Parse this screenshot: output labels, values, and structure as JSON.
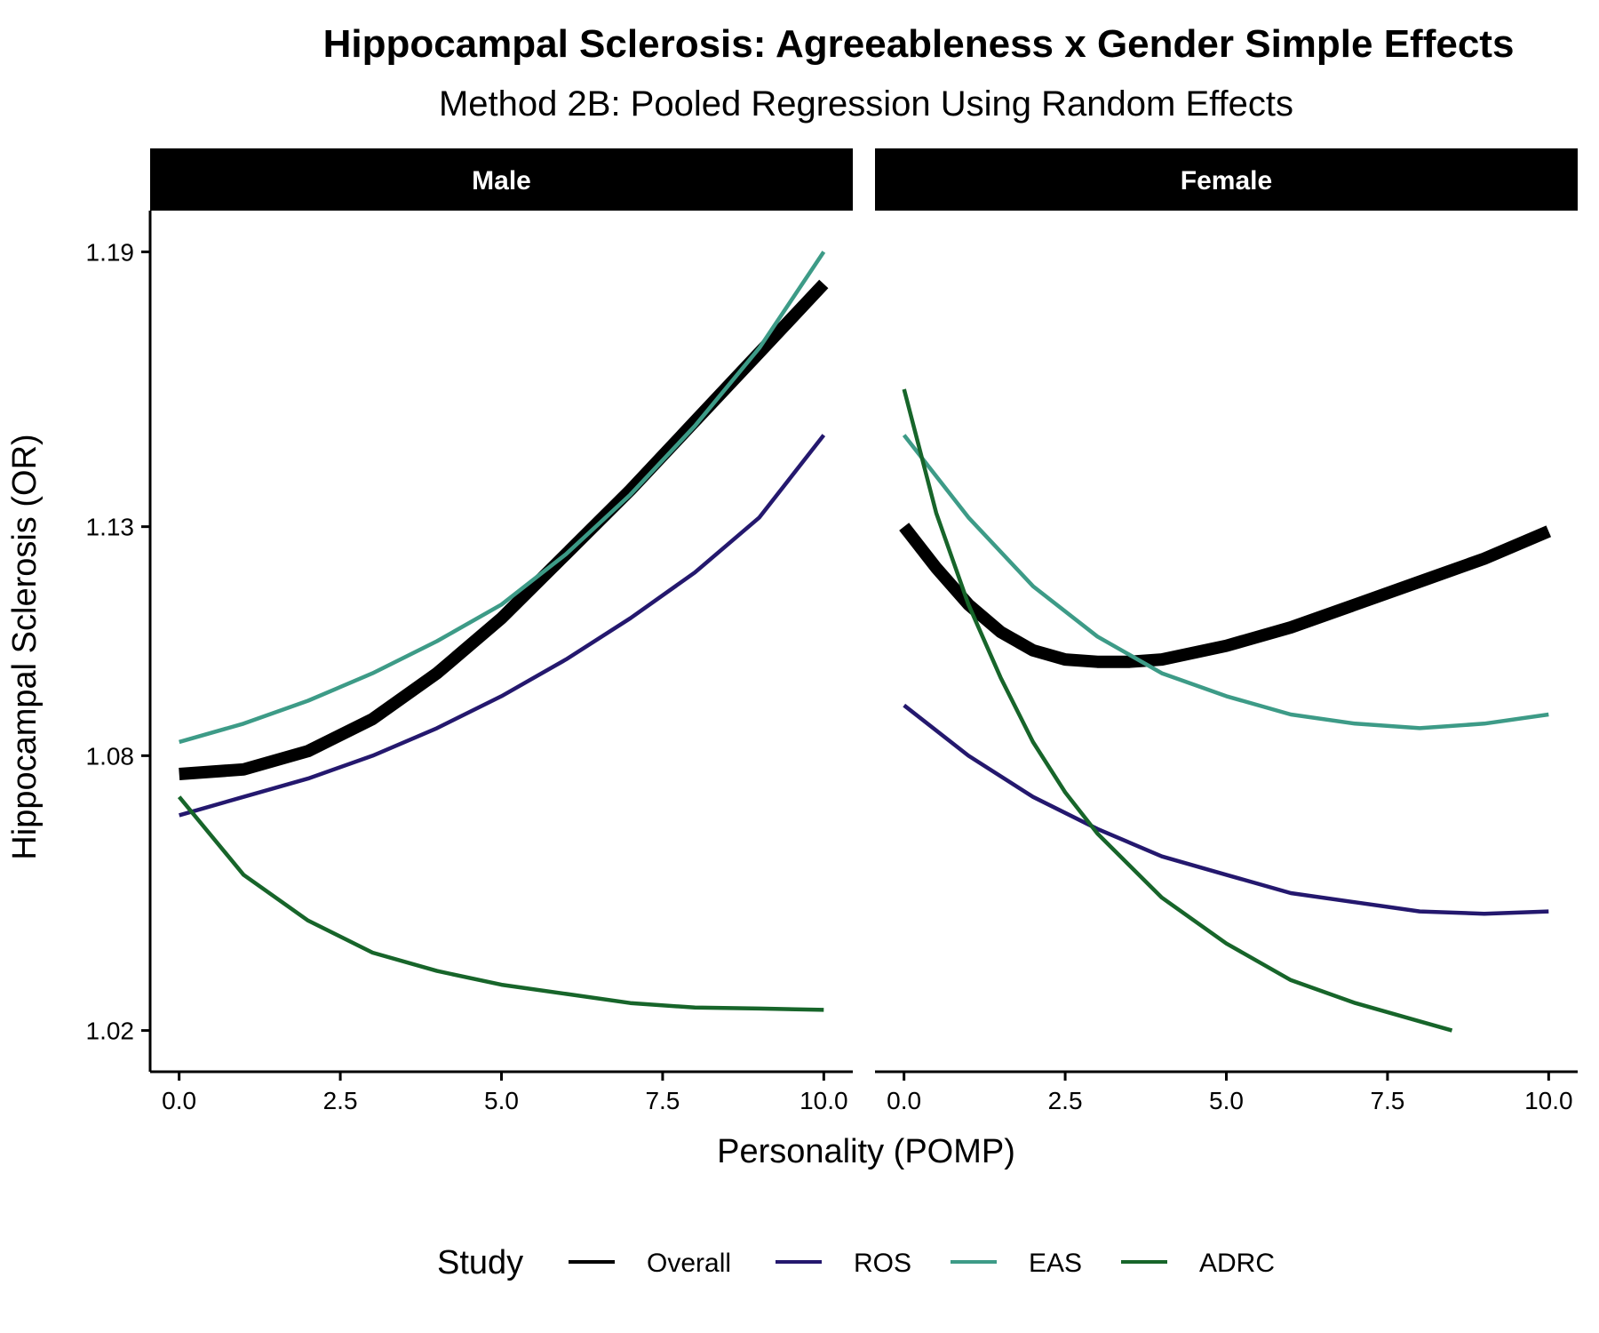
{
  "chart_data": {
    "type": "line",
    "title": "Hippocampal Sclerosis: Agreeableness x Gender Simple Effects",
    "subtitle": "Method 2B: Pooled Regression Using Random Effects",
    "xlabel": "Personality (POMP)",
    "ylabel": "Hippocampal Sclerosis (OR)",
    "xlim": [
      -0.45,
      10.45
    ],
    "ylim": [
      1.011,
      1.199
    ],
    "xticks": [
      0.0,
      2.5,
      5.0,
      7.5,
      10.0
    ],
    "xtick_labels": [
      "0.0",
      "2.5",
      "5.0",
      "7.5",
      "10.0"
    ],
    "yticks": [
      1.02,
      1.08,
      1.13,
      1.19
    ],
    "ytick_labels": [
      "1.02",
      "1.08",
      "1.13",
      "1.19"
    ],
    "grid": false,
    "legend": {
      "title": "Study",
      "position": "bottom"
    },
    "panels": [
      {
        "label": "Male",
        "series": [
          {
            "name": "Overall",
            "color": "#000000",
            "width": "thick",
            "x": [
              0,
              1,
              2,
              3,
              4,
              5,
              6,
              7,
              8,
              9,
              10
            ],
            "y": [
              1.076,
              1.077,
              1.081,
              1.088,
              1.098,
              1.11,
              1.124,
              1.138,
              1.153,
              1.168,
              1.183
            ]
          },
          {
            "name": "ROS",
            "color": "#24186e",
            "width": "thin",
            "x": [
              0,
              1,
              2,
              3,
              4,
              5,
              6,
              7,
              8,
              9,
              10
            ],
            "y": [
              1.067,
              1.071,
              1.075,
              1.08,
              1.086,
              1.093,
              1.101,
              1.11,
              1.12,
              1.132,
              1.15
            ]
          },
          {
            "name": "EAS",
            "color": "#3d9b87",
            "width": "thin",
            "x": [
              0,
              1,
              2,
              3,
              4,
              5,
              6,
              7,
              8,
              9,
              10
            ],
            "y": [
              1.083,
              1.087,
              1.092,
              1.098,
              1.105,
              1.113,
              1.124,
              1.137,
              1.152,
              1.169,
              1.19
            ]
          },
          {
            "name": "ADRC",
            "color": "#17652a",
            "width": "thin",
            "x": [
              0,
              1,
              2,
              3,
              4,
              5,
              6,
              7,
              8,
              9,
              10
            ],
            "y": [
              1.071,
              1.054,
              1.044,
              1.037,
              1.033,
              1.03,
              1.028,
              1.026,
              1.025,
              1.0248,
              1.0245
            ]
          }
        ]
      },
      {
        "label": "Female",
        "series": [
          {
            "name": "Overall",
            "color": "#000000",
            "width": "thick",
            "x": [
              0,
              0.5,
              1,
              1.5,
              2,
              2.5,
              3,
              3.5,
              4,
              5,
              6,
              7,
              8,
              9,
              10
            ],
            "y": [
              1.13,
              1.121,
              1.113,
              1.107,
              1.103,
              1.101,
              1.1005,
              1.1005,
              1.101,
              1.104,
              1.108,
              1.113,
              1.118,
              1.123,
              1.129
            ]
          },
          {
            "name": "ROS",
            "color": "#24186e",
            "width": "thin",
            "x": [
              0,
              1,
              2,
              3,
              4,
              5,
              6,
              7,
              8,
              9,
              10
            ],
            "y": [
              1.091,
              1.08,
              1.071,
              1.064,
              1.058,
              1.054,
              1.05,
              1.048,
              1.046,
              1.0455,
              1.046
            ]
          },
          {
            "name": "EAS",
            "color": "#3d9b87",
            "width": "thin",
            "x": [
              0,
              1,
              2,
              3,
              4,
              5,
              6,
              7,
              8,
              9,
              10
            ],
            "y": [
              1.15,
              1.132,
              1.117,
              1.106,
              1.098,
              1.093,
              1.089,
              1.087,
              1.086,
              1.087,
              1.089
            ]
          },
          {
            "name": "ADRC",
            "color": "#17652a",
            "width": "thin",
            "x": [
              0,
              0.5,
              1,
              1.5,
              2,
              2.5,
              3,
              4,
              5,
              6,
              7,
              8,
              8.5
            ],
            "y": [
              1.16,
              1.133,
              1.113,
              1.097,
              1.083,
              1.072,
              1.063,
              1.049,
              1.039,
              1.031,
              1.026,
              1.022,
              1.02
            ]
          }
        ]
      }
    ]
  }
}
